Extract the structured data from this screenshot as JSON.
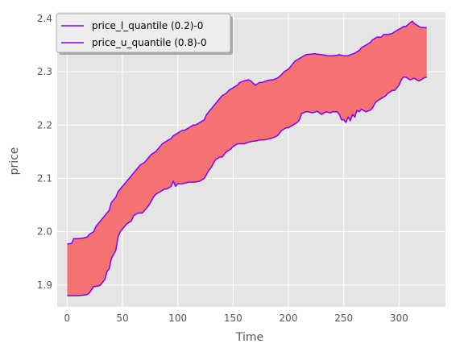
{
  "chart_data": {
    "type": "area",
    "title": "",
    "xlabel": "Time",
    "ylabel": "price",
    "xlim": [
      -9,
      342
    ],
    "ylim": [
      1.859,
      2.412
    ],
    "x_ticks": [
      0,
      50,
      100,
      150,
      200,
      250,
      300
    ],
    "y_ticks": [
      1.9,
      2.0,
      2.1,
      2.2,
      2.3,
      2.4
    ],
    "x_tick_labels": [
      "0",
      "50",
      "100",
      "150",
      "200",
      "250",
      "300"
    ],
    "y_tick_labels": [
      "1.9",
      "2.0",
      "2.1",
      "2.2",
      "2.3",
      "2.4"
    ],
    "grid": true,
    "legend_position": "top-left",
    "fill_color": "#f47272",
    "series": [
      {
        "name": "price_l_quantile (0.2)-0",
        "color": "#7f00ff",
        "x": [
          0,
          10,
          18,
          20,
          24,
          28,
          30,
          34,
          36,
          38,
          40,
          44,
          46,
          48,
          50,
          54,
          58,
          60,
          64,
          68,
          70,
          74,
          78,
          80,
          84,
          88,
          90,
          94,
          96,
          98,
          100,
          104,
          108,
          110,
          114,
          118,
          120,
          124,
          128,
          130,
          134,
          138,
          140,
          144,
          148,
          150,
          154,
          158,
          160,
          164,
          168,
          170,
          174,
          178,
          180,
          184,
          188,
          190,
          194,
          198,
          200,
          204,
          208,
          210,
          212,
          216,
          218,
          222,
          226,
          228,
          230,
          234,
          238,
          240,
          244,
          246,
          248,
          250,
          252,
          254,
          256,
          258,
          260,
          262,
          264,
          266,
          270,
          274,
          276,
          278,
          280,
          284,
          288,
          290,
          294,
          296,
          300,
          302,
          304,
          306,
          310,
          314,
          316,
          318,
          320,
          322,
          325
        ],
        "y": [
          1.88,
          1.88,
          1.882,
          1.885,
          1.897,
          1.898,
          1.9,
          1.91,
          1.925,
          1.93,
          1.95,
          1.965,
          1.99,
          2.0,
          2.005,
          2.015,
          2.02,
          2.03,
          2.035,
          2.035,
          2.04,
          2.05,
          2.065,
          2.07,
          2.075,
          2.08,
          2.08,
          2.085,
          2.095,
          2.085,
          2.09,
          2.09,
          2.092,
          2.093,
          2.093,
          2.094,
          2.095,
          2.1,
          2.115,
          2.12,
          2.135,
          2.14,
          2.14,
          2.15,
          2.155,
          2.16,
          2.165,
          2.165,
          2.165,
          2.168,
          2.17,
          2.17,
          2.172,
          2.172,
          2.173,
          2.175,
          2.178,
          2.18,
          2.19,
          2.195,
          2.195,
          2.2,
          2.205,
          2.21,
          2.222,
          2.225,
          2.225,
          2.223,
          2.226,
          2.223,
          2.22,
          2.225,
          2.223,
          2.225,
          2.225,
          2.22,
          2.21,
          2.21,
          2.205,
          2.215,
          2.208,
          2.22,
          2.215,
          2.228,
          2.225,
          2.23,
          2.225,
          2.228,
          2.232,
          2.24,
          2.245,
          2.25,
          2.255,
          2.26,
          2.265,
          2.265,
          2.275,
          2.285,
          2.29,
          2.29,
          2.285,
          2.288,
          2.285,
          2.283,
          2.285,
          2.288,
          2.29
        ]
      },
      {
        "name": "price_u_quantile (0.8)-0",
        "color": "#7f00ff",
        "x": [
          0,
          4,
          6,
          10,
          14,
          18,
          20,
          24,
          26,
          30,
          34,
          36,
          38,
          40,
          44,
          46,
          50,
          54,
          56,
          60,
          64,
          66,
          70,
          74,
          76,
          80,
          84,
          86,
          90,
          94,
          96,
          100,
          104,
          106,
          110,
          114,
          116,
          120,
          124,
          126,
          130,
          134,
          136,
          140,
          144,
          146,
          150,
          154,
          156,
          160,
          164,
          166,
          170,
          174,
          176,
          180,
          184,
          186,
          190,
          194,
          196,
          200,
          204,
          206,
          210,
          214,
          216,
          220,
          224,
          226,
          230,
          234,
          236,
          240,
          244,
          246,
          250,
          254,
          256,
          260,
          264,
          266,
          270,
          274,
          276,
          280,
          284,
          286,
          290,
          294,
          296,
          300,
          302,
          304,
          306,
          308,
          310,
          312,
          314,
          316,
          318,
          320,
          325
        ],
        "y": [
          1.977,
          1.978,
          1.987,
          1.987,
          1.988,
          1.99,
          1.995,
          2.0,
          2.01,
          2.02,
          2.03,
          2.035,
          2.04,
          2.055,
          2.065,
          2.075,
          2.085,
          2.095,
          2.1,
          2.11,
          2.12,
          2.125,
          2.13,
          2.14,
          2.145,
          2.15,
          2.16,
          2.165,
          2.17,
          2.175,
          2.18,
          2.185,
          2.19,
          2.19,
          2.195,
          2.2,
          2.2,
          2.205,
          2.21,
          2.22,
          2.23,
          2.24,
          2.245,
          2.255,
          2.26,
          2.265,
          2.27,
          2.275,
          2.28,
          2.283,
          2.285,
          2.283,
          2.275,
          2.28,
          2.28,
          2.283,
          2.285,
          2.285,
          2.288,
          2.295,
          2.3,
          2.305,
          2.315,
          2.32,
          2.325,
          2.33,
          2.332,
          2.333,
          2.334,
          2.333,
          2.332,
          2.331,
          2.33,
          2.33,
          2.331,
          2.332,
          2.33,
          2.33,
          2.332,
          2.335,
          2.34,
          2.345,
          2.35,
          2.355,
          2.36,
          2.365,
          2.365,
          2.37,
          2.37,
          2.372,
          2.375,
          2.38,
          2.382,
          2.385,
          2.385,
          2.388,
          2.392,
          2.395,
          2.39,
          2.388,
          2.385,
          2.383,
          2.383
        ]
      }
    ]
  }
}
